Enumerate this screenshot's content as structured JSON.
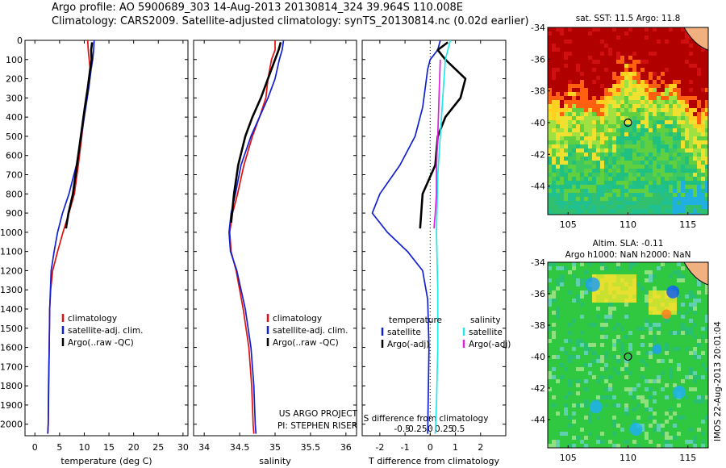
{
  "header": {
    "line1": "Argo profile: AO 5900689_303 14-Aug-2013 20130814_324 39.964S 110.008E",
    "line2": "Climatology: CARS2009. Satellite-adjusted climatology: synTS_20130814.nc (0.02d earlier)"
  },
  "colors": {
    "red": "#e01010",
    "blue": "#1020d0",
    "black": "#000000",
    "cyan": "#20e8e8",
    "magenta": "#e020e0"
  },
  "chart_data": [
    {
      "type": "line",
      "id": "temperature",
      "xlabel": "temperature (deg C)",
      "ylabel": "",
      "xlim": [
        -2,
        31
      ],
      "ylim": [
        2060,
        0
      ],
      "xticks": [
        0,
        5,
        10,
        15,
        20,
        25,
        30
      ],
      "yticks": [
        0,
        100,
        200,
        300,
        400,
        500,
        600,
        700,
        800,
        900,
        1000,
        1100,
        1200,
        1300,
        1400,
        1500,
        1600,
        1700,
        1800,
        1900,
        2000
      ],
      "legend": [
        "climatology",
        "satellite-adj. clim.",
        "Argo(..raw -QC)"
      ],
      "legend_colors": [
        "#e01010",
        "#1020d0",
        "#000000"
      ],
      "series": [
        {
          "name": "climatology",
          "color": "#e01010",
          "x": [
            10.7,
            10.8,
            11.0,
            11.2,
            10.7,
            10.2,
            9.5,
            8.8,
            8.0,
            6.9,
            5.7,
            4.6,
            3.6,
            3.2,
            3.0,
            2.9,
            2.75,
            2.7,
            2.6
          ],
          "y": [
            0,
            50,
            100,
            150,
            250,
            350,
            500,
            650,
            800,
            900,
            1000,
            1100,
            1200,
            1300,
            1400,
            1600,
            1800,
            2000,
            2050
          ]
        },
        {
          "name": "satellite-adj. clim.",
          "color": "#1020d0",
          "x": [
            12.0,
            11.9,
            11.7,
            11.4,
            10.9,
            10.3,
            9.4,
            8.4,
            6.9,
            5.6,
            4.6,
            3.9,
            3.3,
            3.0,
            2.9,
            2.8,
            2.7,
            2.6
          ],
          "y": [
            0,
            50,
            100,
            150,
            250,
            350,
            500,
            650,
            800,
            900,
            1000,
            1100,
            1200,
            1400,
            1600,
            1800,
            2000,
            2050
          ]
        },
        {
          "name": "Argo(..raw -QC)",
          "color": "#000000",
          "x": [
            11.6,
            11.4,
            11.5,
            11.2,
            10.7,
            10.1,
            9.3,
            8.5,
            7.7,
            6.8,
            6.3
          ],
          "y": [
            10,
            50,
            100,
            150,
            250,
            350,
            500,
            650,
            800,
            900,
            980
          ]
        }
      ]
    },
    {
      "type": "line",
      "id": "salinity",
      "xlabel": "salinity",
      "ylabel": "",
      "xlim": [
        33.85,
        36.15
      ],
      "ylim": [
        2060,
        0
      ],
      "xticks": [
        34,
        34.5,
        35,
        35.5,
        36
      ],
      "yticks": [
        0,
        100,
        200,
        300,
        400,
        500,
        600,
        700,
        800,
        900,
        1000,
        1100,
        1200,
        1300,
        1400,
        1500,
        1600,
        1700,
        1800,
        1900,
        2000
      ],
      "legend": [
        "climatology",
        "satellite-adj. clim.",
        "Argo(..raw -QC)"
      ],
      "legend_colors": [
        "#e01010",
        "#1020d0",
        "#000000"
      ],
      "annotations": [
        "US ARGO PROJECT",
        "PI: STEPHEN RISER"
      ],
      "series": [
        {
          "name": "climatology",
          "color": "#e01010",
          "x": [
            35.0,
            35.0,
            34.95,
            34.9,
            34.87,
            34.78,
            34.68,
            34.56,
            34.47,
            34.4,
            34.36,
            34.38,
            34.45,
            34.55,
            34.63,
            34.67,
            34.69,
            34.7
          ],
          "y": [
            0,
            50,
            100,
            200,
            300,
            400,
            500,
            650,
            800,
            900,
            1000,
            1100,
            1200,
            1400,
            1600,
            1800,
            2000,
            2050
          ]
        },
        {
          "name": "satellite-adj. clim.",
          "color": "#1020d0",
          "x": [
            35.12,
            35.1,
            35.06,
            35.0,
            34.9,
            34.78,
            34.66,
            34.52,
            34.44,
            34.38,
            34.35,
            34.37,
            34.46,
            34.58,
            34.66,
            34.7,
            34.72,
            34.73
          ],
          "y": [
            0,
            50,
            100,
            200,
            300,
            400,
            500,
            650,
            800,
            900,
            1000,
            1100,
            1200,
            1400,
            1600,
            1800,
            2000,
            2050
          ]
        },
        {
          "name": "Argo(..raw -QC)",
          "color": "#000000",
          "x": [
            35.08,
            35.05,
            35.0,
            34.9,
            34.8,
            34.68,
            34.58,
            34.48,
            34.42,
            34.38
          ],
          "y": [
            10,
            50,
            100,
            200,
            300,
            400,
            500,
            650,
            800,
            950
          ]
        }
      ]
    },
    {
      "type": "line",
      "id": "differences",
      "xlabel": "T difference from climatology",
      "top_axis_label": "S difference from climatology",
      "xlim": [
        -2.7,
        3.0
      ],
      "ylim": [
        2060,
        0
      ],
      "xticks": [
        -2,
        -1,
        0,
        1,
        2
      ],
      "top_xticks": [
        -0.5,
        -0.25,
        0,
        0.25,
        0.5
      ],
      "yticks": [
        0,
        100,
        200,
        300,
        400,
        500,
        600,
        700,
        800,
        900,
        1000,
        1100,
        1200,
        1300,
        1400,
        1500,
        1600,
        1700,
        1800,
        1900,
        2000
      ],
      "legend_title_left": "temperature",
      "legend_title_right": "salinity",
      "legend": [
        "satellite",
        "Argo(-adj)",
        "satellite",
        "Argo(-adj)"
      ],
      "legend_colors": [
        "#1020d0",
        "#000000",
        "#20e8e8",
        "#e020e0"
      ],
      "series": [
        {
          "name": "satellite",
          "color": "#1020d0",
          "x": [
            0.4,
            0.3,
            0.0,
            -0.1,
            -0.2,
            -0.3,
            -0.6,
            -1.2,
            -2.0,
            -2.3,
            -1.7,
            -0.9,
            -0.3,
            -0.1,
            -0.05,
            -0.1
          ],
          "y": [
            0,
            50,
            100,
            150,
            250,
            350,
            500,
            650,
            800,
            900,
            1000,
            1100,
            1200,
            1350,
            1600,
            2050
          ]
        },
        {
          "name": "Argo(-adj)",
          "color": "#000000",
          "x": [
            0.7,
            0.3,
            0.6,
            1.4,
            1.2,
            0.6,
            0.3,
            0.2,
            -0.3,
            -0.4
          ],
          "y": [
            10,
            50,
            100,
            200,
            300,
            400,
            500,
            650,
            800,
            980
          ]
        },
        {
          "name": "satellite",
          "color": "#20e8e8",
          "x": [
            0.8,
            0.6,
            0.5,
            0.4,
            0.3,
            0.25,
            0.3,
            0.3,
            0.25,
            0.2
          ],
          "y": [
            0,
            100,
            300,
            500,
            700,
            1000,
            1300,
            1600,
            1900,
            2050
          ]
        },
        {
          "name": "Argo(-adj)",
          "color": "#e020e0",
          "x": [
            0.4,
            0.35,
            0.3,
            0.25,
            0.25,
            0.2,
            0.15
          ],
          "y": [
            100,
            300,
            500,
            650,
            800,
            900,
            980
          ]
        }
      ]
    },
    {
      "type": "heatmap",
      "id": "sst-map",
      "title": "sat. SST: 11.5  Argo: 11.8",
      "xlim": [
        103.3,
        116.7
      ],
      "ylim": [
        -45.8,
        -34
      ],
      "xticks": [
        105,
        110,
        115
      ],
      "yticks": [
        -34,
        -36,
        -38,
        -40,
        -42,
        -44
      ],
      "marker": {
        "lon": 110.0,
        "lat": -40.0
      }
    },
    {
      "type": "heatmap",
      "id": "sla-map",
      "title": "Altim. SLA: -0.11",
      "subtitle": "Argo h1000: NaN h2000: NaN",
      "side_label": "IMOS 22-Aug-2013 20:01:04",
      "xlim": [
        103.3,
        116.7
      ],
      "ylim": [
        -45.8,
        -34
      ],
      "xticks": [
        105,
        110,
        115
      ],
      "yticks": [
        -34,
        -36,
        -38,
        -40,
        -42,
        -44
      ],
      "marker": {
        "lon": 110.0,
        "lat": -40.0
      }
    }
  ]
}
